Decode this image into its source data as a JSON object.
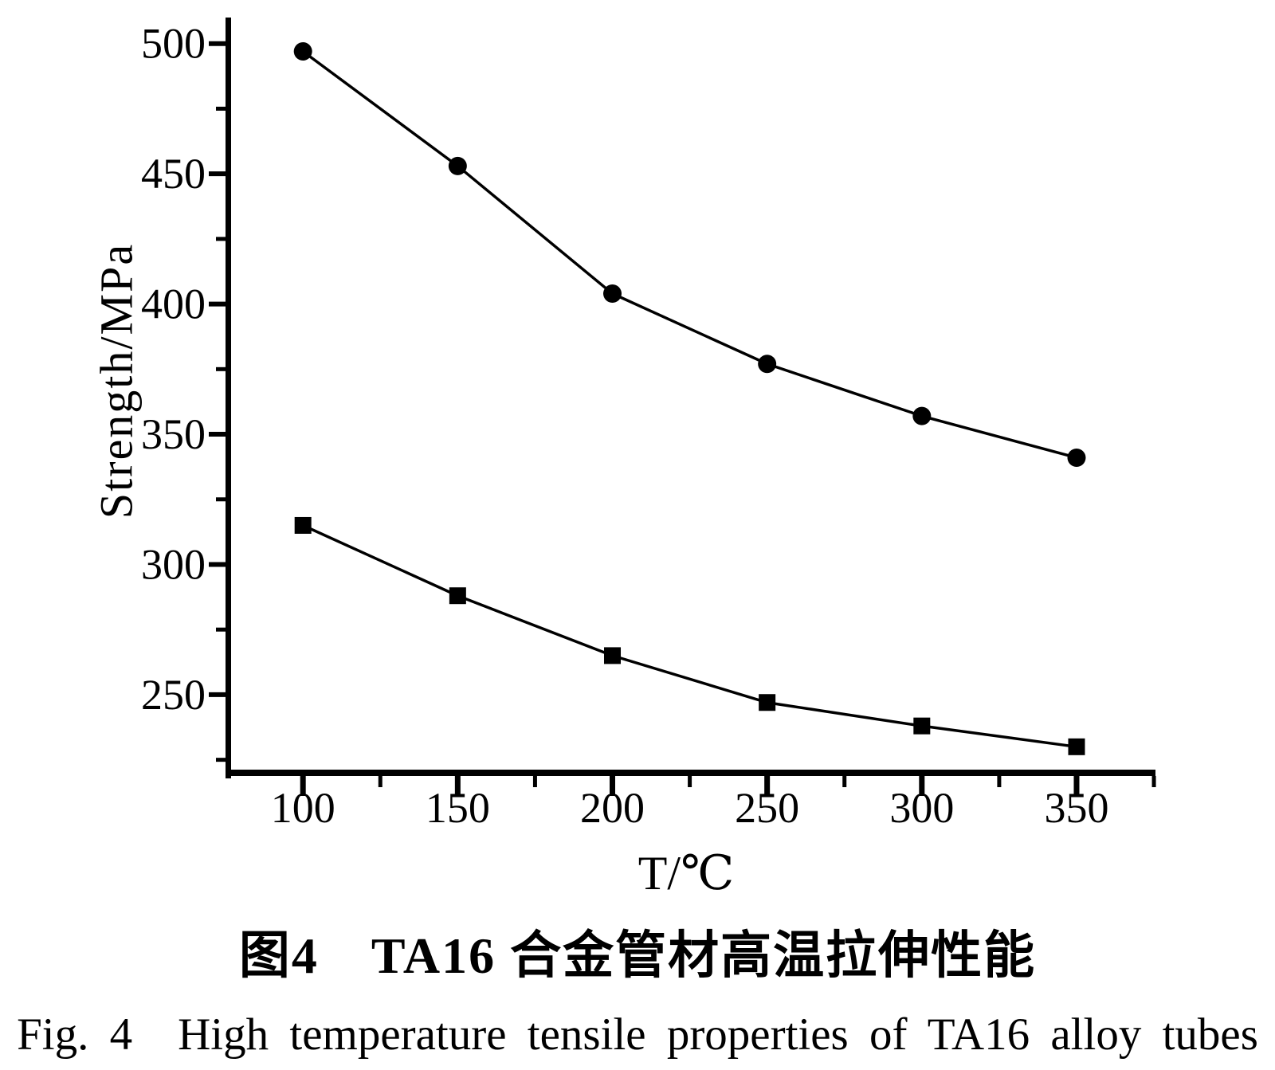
{
  "figure": {
    "caption_zh": "图4　TA16 合金管材高温拉伸性能",
    "caption_en": "Fig. 4　High temperature tensile properties of TA16 alloy tubes"
  },
  "chart_data": {
    "type": "line",
    "x": [
      100,
      150,
      200,
      250,
      300,
      350
    ],
    "series": [
      {
        "name": "upper-strength-curve",
        "marker": "circle",
        "values": [
          497,
          453,
          404,
          377,
          357,
          341
        ]
      },
      {
        "name": "lower-strength-curve",
        "marker": "square",
        "values": [
          315,
          288,
          265,
          247,
          238,
          230
        ]
      }
    ],
    "xlabel": "T/℃",
    "ylabel": "Strength/MPa",
    "xlim": [
      76,
      375.5
    ],
    "ylim": [
      220,
      510
    ],
    "x_major_ticks": [
      100,
      150,
      200,
      250,
      300,
      350
    ],
    "x_minor_ticks": [
      125,
      175,
      225,
      275,
      325,
      375
    ],
    "y_major_ticks": [
      250,
      300,
      350,
      400,
      450,
      500
    ],
    "y_minor_ticks": [
      225,
      275,
      325,
      375,
      425,
      475
    ],
    "grid": false,
    "legend": "none",
    "line_color": "#000000",
    "marker_color": "#000000",
    "background": "#ffffff"
  }
}
